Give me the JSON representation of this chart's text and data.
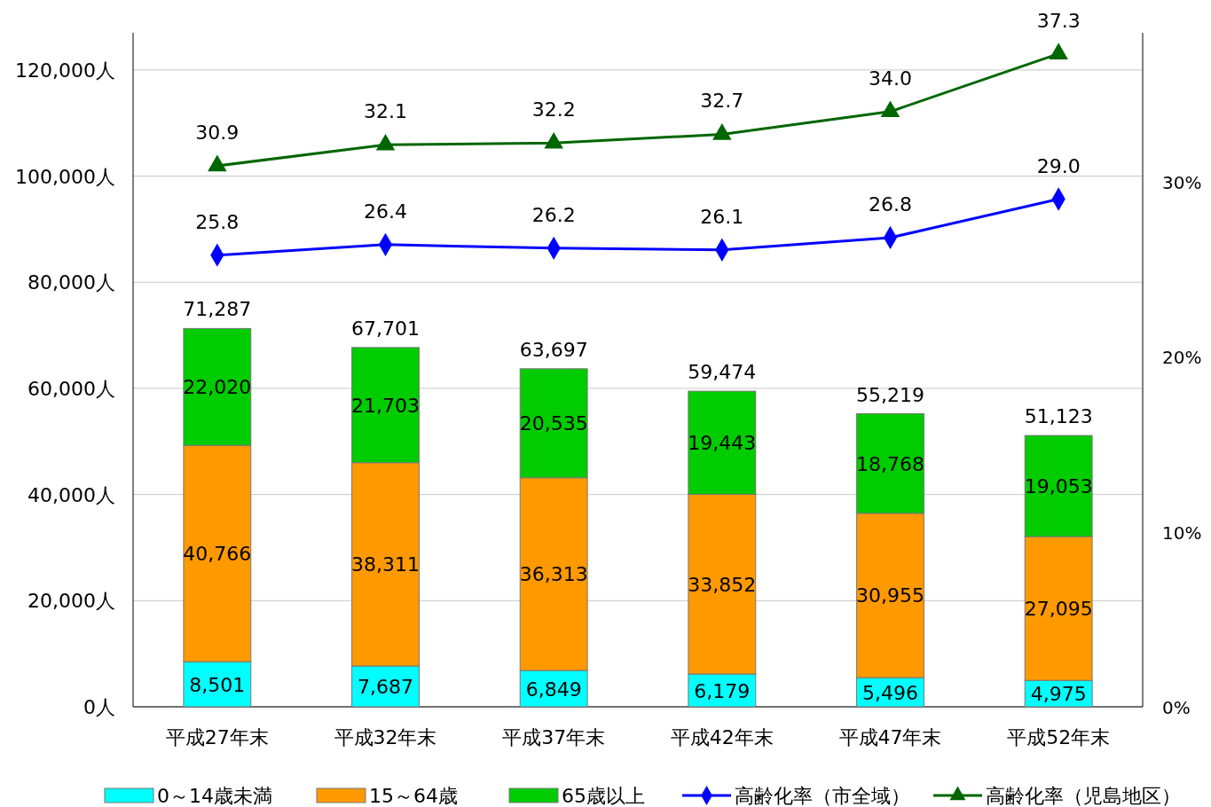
{
  "chart_data": {
    "type": "bar",
    "stacked": true,
    "categories": [
      "平成27年末",
      "平成32年末",
      "平成37年末",
      "平成42年末",
      "平成47年末",
      "平成52年末"
    ],
    "series": [
      {
        "name": "0～14歳未満",
        "color": "#00ffff",
        "values": [
          8501,
          7687,
          6849,
          6179,
          5496,
          4975
        ],
        "value_labels": [
          "8,501",
          "7,687",
          "6,849",
          "6,179",
          "5,496",
          "4,975"
        ]
      },
      {
        "name": "15～64歳",
        "color": "#ff9900",
        "values": [
          40766,
          38311,
          36313,
          33852,
          30955,
          27095
        ],
        "value_labels": [
          "40,766",
          "38,311",
          "36,313",
          "33,852",
          "30,955",
          "27,095"
        ]
      },
      {
        "name": "65歳以上",
        "color": "#00cc00",
        "values": [
          22020,
          21703,
          20535,
          19443,
          18768,
          19053
        ],
        "value_labels": [
          "22,020",
          "21,703",
          "20,535",
          "19,443",
          "18,768",
          "19,053"
        ]
      },
      {
        "name": "高齢化率（市全域）",
        "type": "line",
        "axis": "y2",
        "marker": "diamond",
        "color": "#0000ff",
        "values": [
          25.8,
          26.4,
          26.2,
          26.1,
          26.8,
          29.0
        ],
        "value_labels": [
          "25.8",
          "26.4",
          "26.2",
          "26.1",
          "26.8",
          "29.0"
        ]
      },
      {
        "name": "高齢化率（児島地区）",
        "type": "line",
        "axis": "y2",
        "marker": "triangle",
        "color": "#006600",
        "values": [
          30.9,
          32.1,
          32.2,
          32.7,
          34.0,
          37.3
        ],
        "value_labels": [
          "30.9",
          "32.1",
          "32.2",
          "32.7",
          "34.0",
          "37.3"
        ]
      }
    ],
    "totals": [
      "71,287",
      "67,701",
      "63,697",
      "59,474",
      "55,219",
      "51,123"
    ],
    "ylim": [
      0,
      127000
    ],
    "yticks": [
      {
        "value": 0,
        "label": "0人"
      },
      {
        "value": 20000,
        "label": "20,000人"
      },
      {
        "value": 40000,
        "label": "40,000人"
      },
      {
        "value": 60000,
        "label": "60,000人"
      },
      {
        "value": 80000,
        "label": "80,000人"
      },
      {
        "value": 100000,
        "label": "100,000人"
      },
      {
        "value": 120000,
        "label": "120,000人"
      }
    ],
    "y2lim": [
      0,
      38.5
    ],
    "y2ticks": [
      {
        "value": 0,
        "label": "0%"
      },
      {
        "value": 10,
        "label": "10%"
      },
      {
        "value": 20,
        "label": "20%"
      },
      {
        "value": 30,
        "label": "30%"
      }
    ],
    "grid": "y",
    "legend": "bottom"
  }
}
